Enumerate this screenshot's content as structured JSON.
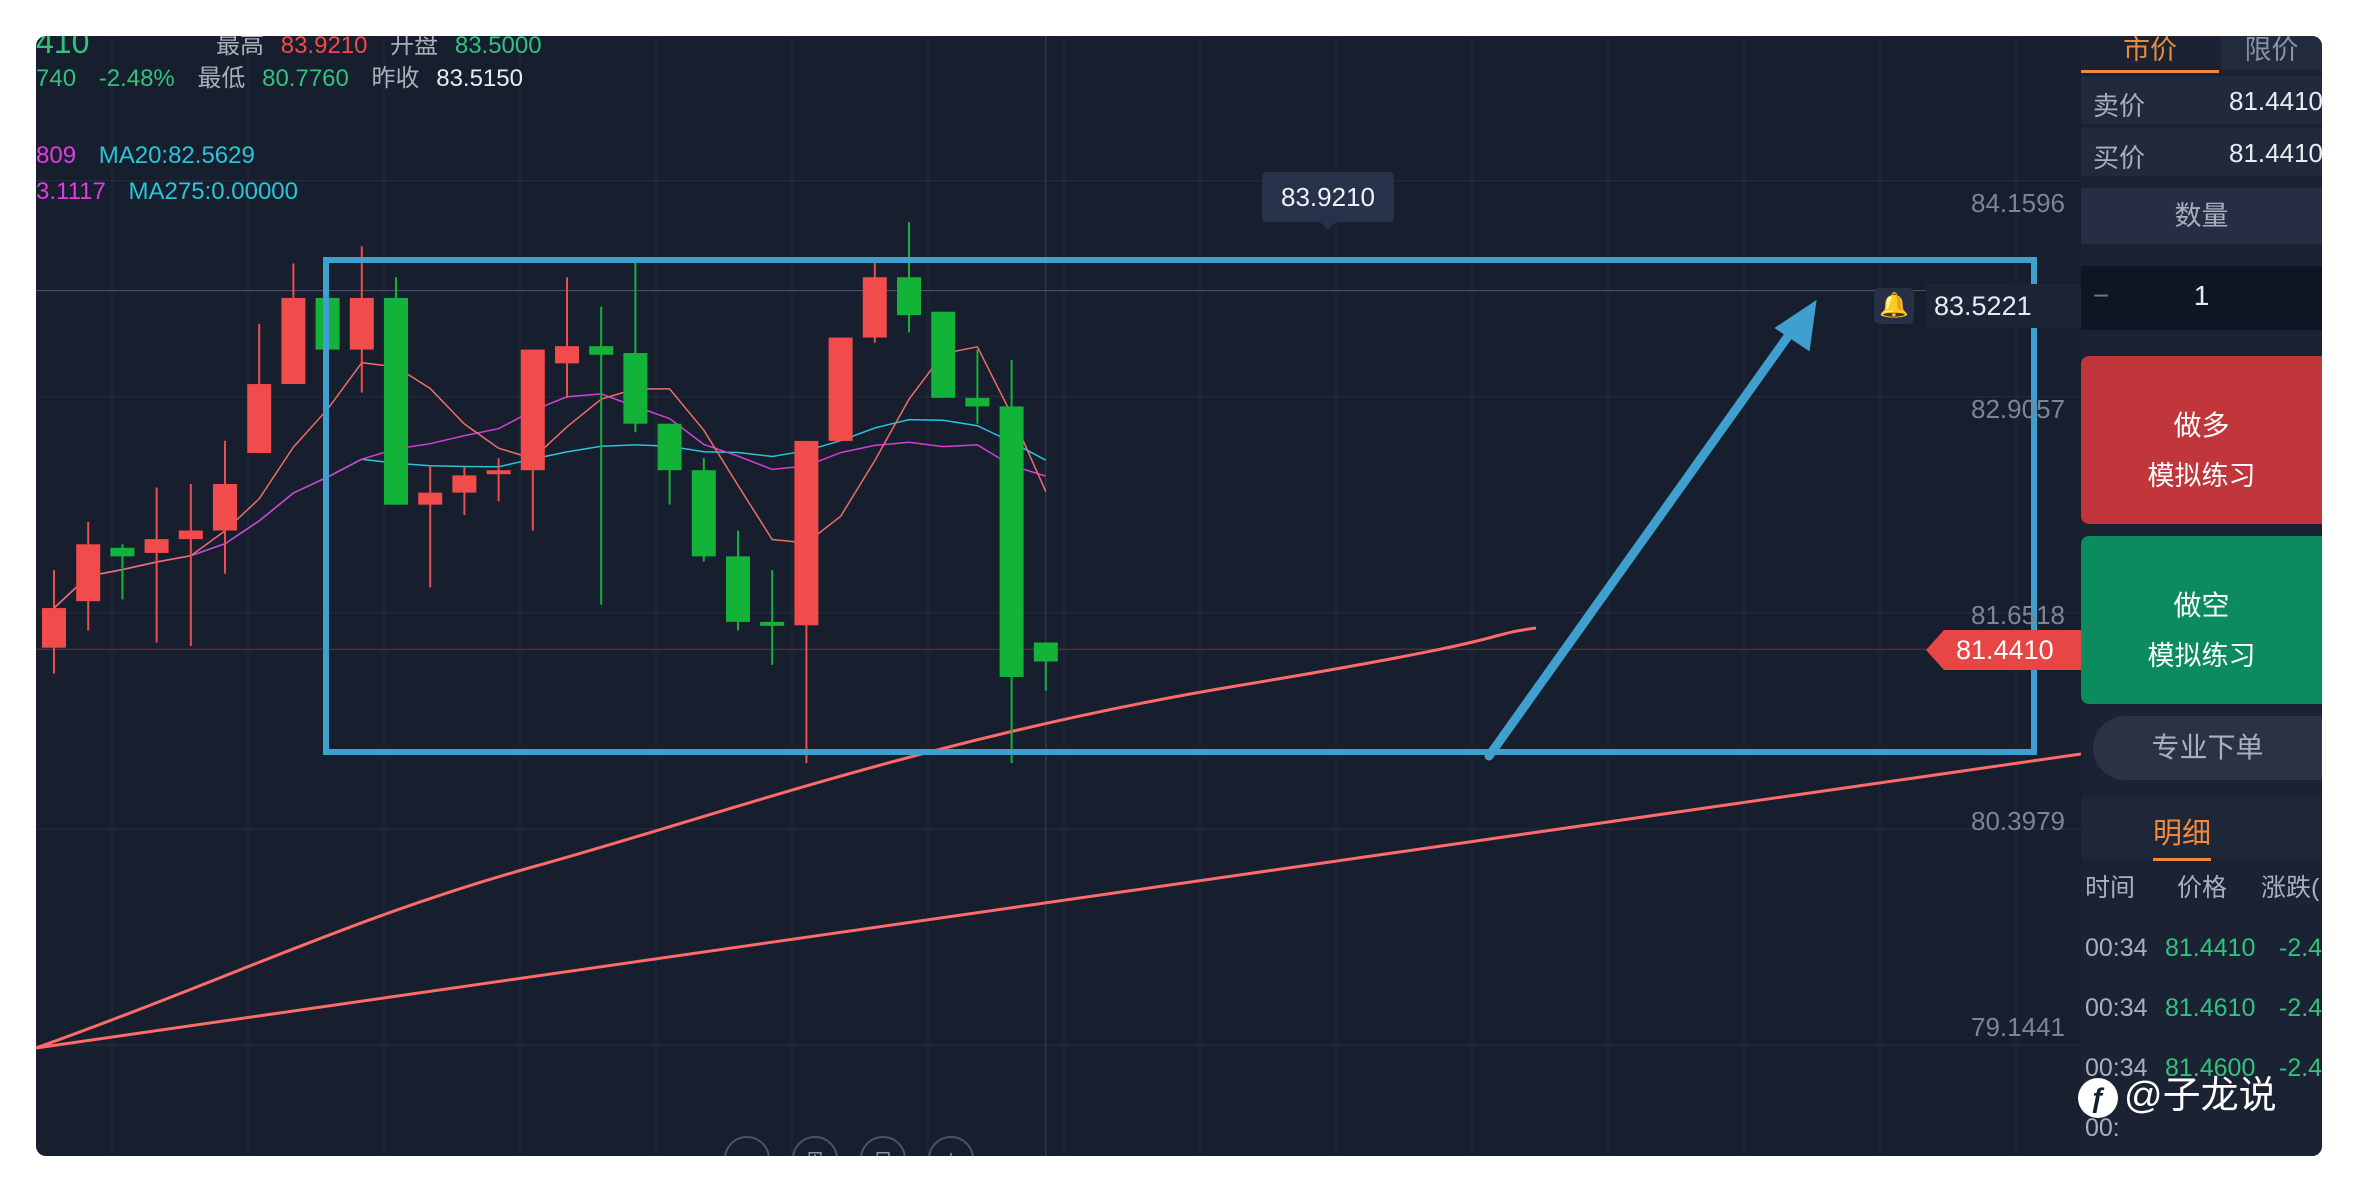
{
  "info": {
    "row0_price": "410",
    "row0_high_label": "最高",
    "row0_high_value": "83.9210",
    "row0_open_label": "开盘",
    "row0_open_value": "83.5000",
    "row1_change_value": "740",
    "row1_change_pct": "-2.48%",
    "low_label": "最低",
    "low_value": "80.7760",
    "prev_close_label": "昨收",
    "prev_close_value": "83.5150",
    "ma_row1_left": "809",
    "ma20": "MA20:82.5629",
    "ma_row2_left": "3.1117",
    "ma275": "MA275:0.00000"
  },
  "price_axis": [
    "84.1596",
    "82.9057",
    "81.6518",
    "80.3979",
    "79.1441"
  ],
  "tooltip_high": "83.9210",
  "reference_line_value": "83.5221",
  "current_price_tag": "81.4410",
  "tools": [
    "−",
    "⊞",
    "⊟",
    "+"
  ],
  "panel": {
    "tab_market": "市价",
    "tab_limit": "限价",
    "sell_label": "卖价",
    "sell_value": "81.4410",
    "buy_label": "买价",
    "buy_value": "81.4410",
    "qty_title": "数量",
    "qty_minus": "−",
    "qty_value": "1",
    "long_line1": "做多",
    "long_line2": "模拟练习",
    "short_line1": "做空",
    "short_line2": "模拟练习",
    "pro_order": "专业下单",
    "detail_tab": "明细",
    "col_time": "时间",
    "col_price": "价格",
    "col_change": "涨跌(",
    "rows": [
      {
        "time": "00:34",
        "price": "81.4410",
        "change": "-2.4"
      },
      {
        "time": "00:34",
        "price": "81.4610",
        "change": "-2.4"
      },
      {
        "time": "00:34",
        "price": "81.4600",
        "change": "-2.4"
      },
      {
        "time": "00:",
        "price": "",
        "change": ""
      }
    ]
  },
  "watermark": "@子龙说",
  "colors": {
    "bull": "#f24b4b",
    "bear": "#13b33a",
    "ma5": "#f06b6b",
    "ma10": "#d43fd4",
    "ma20": "#27c6d8",
    "ma_long": "#ff6b6b",
    "annotation": "#3f9fcf"
  },
  "chart_data": {
    "type": "candlestick",
    "y_range": [
      78.5,
      85.0
    ],
    "candles": [
      {
        "o": 81.45,
        "c": 81.68,
        "h": 81.9,
        "l": 81.3
      },
      {
        "o": 81.72,
        "c": 82.05,
        "h": 82.18,
        "l": 81.55
      },
      {
        "o": 82.03,
        "c": 81.98,
        "h": 82.05,
        "l": 81.73
      },
      {
        "o": 82.0,
        "c": 82.08,
        "h": 82.38,
        "l": 81.48
      },
      {
        "o": 82.08,
        "c": 82.13,
        "h": 82.4,
        "l": 81.46
      },
      {
        "o": 82.13,
        "c": 82.4,
        "h": 82.65,
        "l": 81.88
      },
      {
        "o": 82.58,
        "c": 82.98,
        "h": 83.33,
        "l": 82.58
      },
      {
        "o": 82.98,
        "c": 83.48,
        "h": 83.68,
        "l": 82.98
      },
      {
        "o": 83.48,
        "c": 83.18,
        "h": 83.53,
        "l": 82.98
      },
      {
        "o": 83.18,
        "c": 83.48,
        "h": 83.78,
        "l": 82.93
      },
      {
        "o": 83.48,
        "c": 82.28,
        "h": 83.6,
        "l": 82.28
      },
      {
        "o": 82.28,
        "c": 82.35,
        "h": 82.5,
        "l": 81.8
      },
      {
        "o": 82.35,
        "c": 82.45,
        "h": 82.5,
        "l": 82.22
      },
      {
        "o": 82.46,
        "c": 82.48,
        "h": 82.55,
        "l": 82.3
      },
      {
        "o": 82.48,
        "c": 83.18,
        "h": 83.18,
        "l": 82.13
      },
      {
        "o": 83.1,
        "c": 83.2,
        "h": 83.6,
        "l": 82.9
      },
      {
        "o": 83.2,
        "c": 83.15,
        "h": 83.43,
        "l": 81.7
      },
      {
        "o": 83.16,
        "c": 82.75,
        "h": 83.7,
        "l": 82.7
      },
      {
        "o": 82.75,
        "c": 82.48,
        "h": 82.75,
        "l": 82.28
      },
      {
        "o": 82.48,
        "c": 81.98,
        "h": 82.55,
        "l": 81.95
      },
      {
        "o": 81.98,
        "c": 81.6,
        "h": 82.13,
        "l": 81.55
      },
      {
        "o": 81.6,
        "c": 81.58,
        "h": 81.9,
        "l": 81.35
      },
      {
        "o": 81.58,
        "c": 82.65,
        "h": 82.65,
        "l": 80.78
      },
      {
        "o": 82.65,
        "c": 83.25,
        "h": 83.25,
        "l": 82.65
      },
      {
        "o": 83.25,
        "c": 83.6,
        "h": 83.7,
        "l": 83.22
      },
      {
        "o": 83.6,
        "c": 83.38,
        "h": 83.92,
        "l": 83.28
      },
      {
        "o": 83.4,
        "c": 82.9,
        "h": 83.4,
        "l": 82.9
      },
      {
        "o": 82.9,
        "c": 82.85,
        "h": 83.18,
        "l": 82.75
      },
      {
        "o": 82.85,
        "c": 81.28,
        "h": 83.12,
        "l": 80.78
      },
      {
        "o": 81.48,
        "c": 81.37,
        "h": 81.48,
        "l": 81.2
      }
    ]
  }
}
